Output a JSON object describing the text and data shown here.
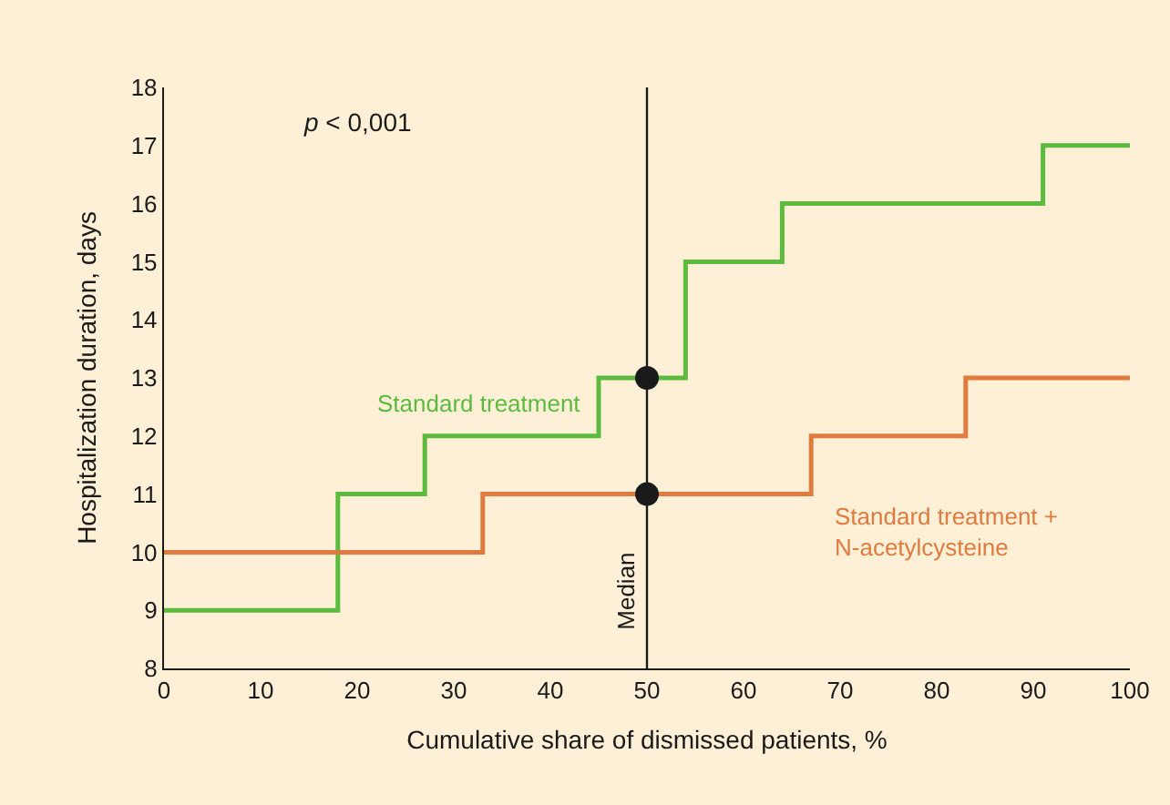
{
  "chart_data": {
    "type": "step",
    "xlabel": "Cumulative share of dismissed patients, %",
    "ylabel": "Hospitalization duration, days",
    "xlim": [
      0,
      100
    ],
    "xticks": [
      0,
      10,
      20,
      30,
      40,
      50,
      60,
      70,
      80,
      90,
      100
    ],
    "ylim": [
      8,
      18
    ],
    "yticks": [
      8,
      9,
      10,
      11,
      12,
      13,
      14,
      15,
      16,
      17,
      18
    ],
    "grid": false,
    "legend": false,
    "series": [
      {
        "name": "Standard treatment",
        "color": "#5cbb3e",
        "x": [
          0,
          18,
          27,
          45,
          54,
          64,
          91,
          100
        ],
        "values": [
          9,
          11,
          12,
          13,
          15,
          16,
          17,
          17
        ]
      },
      {
        "name": "Standard treatment + N-acetylcysteine",
        "color": "#e07b3f",
        "x": [
          0,
          33,
          67,
          83,
          100
        ],
        "values": [
          10,
          11,
          12,
          13,
          13
        ]
      },
      {
        "type": "scatter",
        "color": "#1a1a1a",
        "marker": "circle",
        "x": [
          50,
          50
        ],
        "values": [
          13,
          11
        ]
      }
    ],
    "ref_lines": [
      {
        "axis": "x",
        "value": 50,
        "label": "Median",
        "color": "#1a1a1a"
      }
    ],
    "annotations": [
      "p < 0,001"
    ]
  }
}
